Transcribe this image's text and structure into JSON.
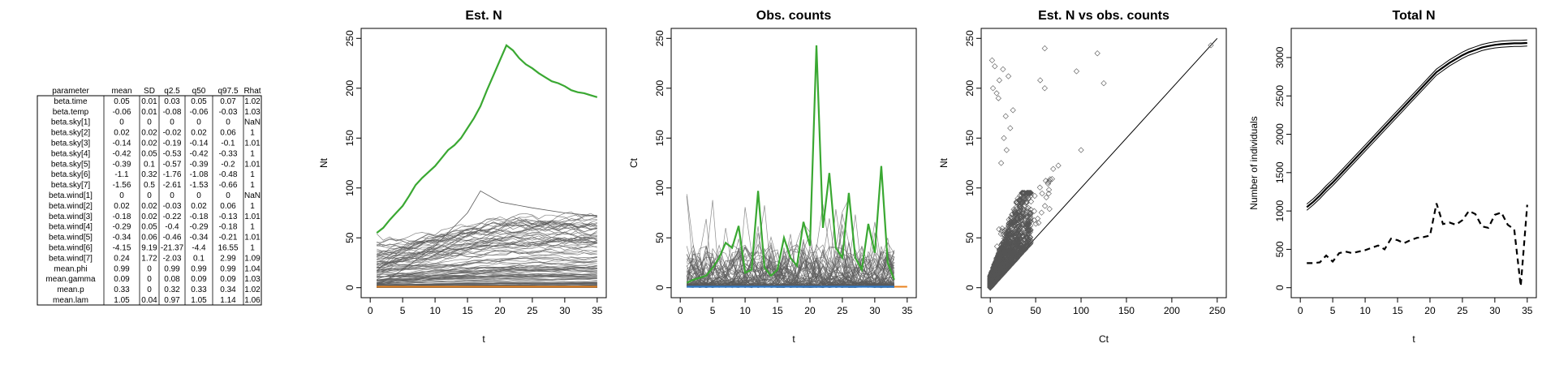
{
  "summary_table": {
    "columns": [
      "parameter",
      "mean",
      "SD",
      "q2.5",
      "q50",
      "q97.5",
      "Rhat"
    ],
    "rows": [
      [
        "beta.time",
        "0.05",
        "0.01",
        "0.03",
        "0.05",
        "0.07",
        "1.02"
      ],
      [
        "beta.temp",
        "-0.06",
        "0.01",
        "-0.08",
        "-0.06",
        "-0.03",
        "1.03"
      ],
      [
        "beta.sky[1]",
        "0",
        "0",
        "0",
        "0",
        "0",
        "NaN"
      ],
      [
        "beta.sky[2]",
        "0.02",
        "0.02",
        "-0.02",
        "0.02",
        "0.06",
        "1"
      ],
      [
        "beta.sky[3]",
        "-0.14",
        "0.02",
        "-0.19",
        "-0.14",
        "-0.1",
        "1.01"
      ],
      [
        "beta.sky[4]",
        "-0.42",
        "0.05",
        "-0.53",
        "-0.42",
        "-0.33",
        "1"
      ],
      [
        "beta.sky[5]",
        "-0.39",
        "0.1",
        "-0.57",
        "-0.39",
        "-0.2",
        "1.01"
      ],
      [
        "beta.sky[6]",
        "-1.1",
        "0.32",
        "-1.76",
        "-1.08",
        "-0.48",
        "1"
      ],
      [
        "beta.sky[7]",
        "-1.56",
        "0.5",
        "-2.61",
        "-1.53",
        "-0.66",
        "1"
      ],
      [
        "beta.wind[1]",
        "0",
        "0",
        "0",
        "0",
        "0",
        "NaN"
      ],
      [
        "beta.wind[2]",
        "0.02",
        "0.02",
        "-0.03",
        "0.02",
        "0.06",
        "1"
      ],
      [
        "beta.wind[3]",
        "-0.18",
        "0.02",
        "-0.22",
        "-0.18",
        "-0.13",
        "1.01"
      ],
      [
        "beta.wind[4]",
        "-0.29",
        "0.05",
        "-0.4",
        "-0.29",
        "-0.18",
        "1"
      ],
      [
        "beta.wind[5]",
        "-0.34",
        "0.06",
        "-0.46",
        "-0.34",
        "-0.21",
        "1.01"
      ],
      [
        "beta.wind[6]",
        "-4.15",
        "9.19",
        "-21.37",
        "-4.4",
        "16.55",
        "1"
      ],
      [
        "beta.wind[7]",
        "0.24",
        "1.72",
        "-2.03",
        "0.1",
        "2.99",
        "1.09"
      ],
      [
        "mean.phi",
        "0.99",
        "0",
        "0.99",
        "0.99",
        "0.99",
        "1.04"
      ],
      [
        "mean.gamma",
        "0.09",
        "0",
        "0.08",
        "0.09",
        "0.09",
        "1.03"
      ],
      [
        "mean.p",
        "0.33",
        "0",
        "0.32",
        "0.33",
        "0.34",
        "1.02"
      ],
      [
        "mean.lam",
        "1.05",
        "0.04",
        "0.97",
        "1.05",
        "1.14",
        "1.06"
      ]
    ]
  },
  "chart_data": [
    {
      "type": "line",
      "title": "Est. N",
      "xlabel": "t",
      "ylabel": "Nt",
      "xlim": [
        0,
        35
      ],
      "ylim": [
        0,
        250
      ],
      "xticks": [
        0,
        5,
        10,
        15,
        20,
        25,
        30,
        35
      ],
      "yticks": [
        0,
        50,
        100,
        150,
        200,
        250
      ],
      "colors": {
        "highlight": "#3aa832",
        "site_lines": "#5a5a5a",
        "low": "#e8821e"
      },
      "highlight_series": [
        [
          1,
          55
        ],
        [
          2,
          60
        ],
        [
          3,
          68
        ],
        [
          4,
          75
        ],
        [
          5,
          82
        ],
        [
          6,
          92
        ],
        [
          7,
          103
        ],
        [
          8,
          110
        ],
        [
          9,
          116
        ],
        [
          10,
          122
        ],
        [
          11,
          130
        ],
        [
          12,
          138
        ],
        [
          13,
          143
        ],
        [
          14,
          150
        ],
        [
          15,
          160
        ],
        [
          16,
          170
        ],
        [
          17,
          182
        ],
        [
          18,
          198
        ],
        [
          19,
          213
        ],
        [
          20,
          228
        ],
        [
          21,
          243
        ],
        [
          22,
          238
        ],
        [
          23,
          230
        ],
        [
          24,
          224
        ],
        [
          25,
          220
        ],
        [
          26,
          215
        ],
        [
          27,
          211
        ],
        [
          28,
          207
        ],
        [
          29,
          205
        ],
        [
          30,
          202
        ],
        [
          31,
          198
        ],
        [
          32,
          196
        ],
        [
          33,
          195
        ],
        [
          34,
          193
        ],
        [
          35,
          191
        ]
      ],
      "example_site_series": [
        [
          1,
          2
        ],
        [
          5,
          18
        ],
        [
          10,
          42
        ],
        [
          15,
          75
        ],
        [
          17,
          97
        ],
        [
          20,
          86
        ],
        [
          25,
          80
        ],
        [
          30,
          75
        ],
        [
          35,
          72
        ]
      ],
      "n_site_series": 120,
      "site_envelope_max": 97
    },
    {
      "type": "line",
      "title": "Obs. counts",
      "xlabel": "t",
      "ylabel": "Ct",
      "xlim": [
        0,
        35
      ],
      "ylim": [
        0,
        250
      ],
      "xticks": [
        0,
        5,
        10,
        15,
        20,
        25,
        30,
        35
      ],
      "yticks": [
        0,
        50,
        100,
        150,
        200,
        250
      ],
      "colors": {
        "highlight": "#3aa832",
        "site_lines": "#5a5a5a",
        "low": "#2e78c8",
        "low2": "#e8821e"
      },
      "highlight_series": [
        [
          1,
          5
        ],
        [
          2,
          8
        ],
        [
          3,
          10
        ],
        [
          4,
          12
        ],
        [
          5,
          20
        ],
        [
          6,
          30
        ],
        [
          7,
          45
        ],
        [
          8,
          40
        ],
        [
          9,
          62
        ],
        [
          10,
          15
        ],
        [
          11,
          18
        ],
        [
          12,
          97
        ],
        [
          13,
          20
        ],
        [
          14,
          12
        ],
        [
          15,
          18
        ],
        [
          16,
          50
        ],
        [
          17,
          30
        ],
        [
          18,
          22
        ],
        [
          19,
          66
        ],
        [
          20,
          42
        ],
        [
          21,
          243
        ],
        [
          22,
          60
        ],
        [
          23,
          115
        ],
        [
          24,
          40
        ],
        [
          25,
          30
        ],
        [
          26,
          95
        ],
        [
          27,
          30
        ],
        [
          28,
          18
        ],
        [
          29,
          64
        ],
        [
          30,
          35
        ],
        [
          31,
          122
        ],
        [
          32,
          25
        ],
        [
          33,
          8
        ]
      ],
      "n_site_series": 80,
      "site_envelope_max": 97
    },
    {
      "type": "scatter",
      "title": "Est. N vs obs. counts",
      "xlabel": "Ct",
      "ylabel": "Nt",
      "xlim": [
        0,
        250
      ],
      "ylim": [
        0,
        250
      ],
      "xticks": [
        0,
        50,
        100,
        150,
        200,
        250
      ],
      "yticks": [
        0,
        50,
        100,
        150,
        200,
        250
      ],
      "reference_line": "y = x",
      "marker": "open-diamond",
      "outliers": [
        [
          2,
          228
        ],
        [
          5,
          222
        ],
        [
          14,
          219
        ],
        [
          20,
          212
        ],
        [
          10,
          208
        ],
        [
          3,
          200
        ],
        [
          7,
          195
        ],
        [
          9,
          190
        ],
        [
          60,
          240
        ],
        [
          55,
          208
        ],
        [
          60,
          200
        ],
        [
          95,
          217
        ],
        [
          118,
          235
        ],
        [
          125,
          205
        ],
        [
          100,
          138
        ],
        [
          243,
          243
        ],
        [
          15,
          150
        ],
        [
          18,
          138
        ],
        [
          12,
          125
        ],
        [
          22,
          160
        ],
        [
          17,
          172
        ],
        [
          25,
          178
        ]
      ],
      "n_points": 2000
    },
    {
      "type": "line",
      "title": "Total N",
      "xlabel": "t",
      "ylabel": "Number of individuals",
      "xlim": [
        0,
        35
      ],
      "ylim": [
        0,
        3250
      ],
      "xticks": [
        0,
        5,
        10,
        15,
        20,
        25,
        30,
        35
      ],
      "yticks": [
        0,
        500,
        1000,
        1500,
        2000,
        2500,
        3000
      ],
      "series": [
        {
          "style": "solid-mean-with-bounds",
          "values": [
            [
              1,
              1050
            ],
            [
              2,
              1120
            ],
            [
              3,
              1200
            ],
            [
              4,
              1290
            ],
            [
              5,
              1370
            ],
            [
              6,
              1460
            ],
            [
              7,
              1550
            ],
            [
              8,
              1640
            ],
            [
              9,
              1730
            ],
            [
              10,
              1820
            ],
            [
              11,
              1910
            ],
            [
              12,
              2000
            ],
            [
              13,
              2090
            ],
            [
              14,
              2180
            ],
            [
              15,
              2270
            ],
            [
              16,
              2360
            ],
            [
              17,
              2450
            ],
            [
              18,
              2540
            ],
            [
              19,
              2630
            ],
            [
              20,
              2720
            ],
            [
              21,
              2810
            ],
            [
              22,
              2870
            ],
            [
              23,
              2930
            ],
            [
              24,
              2980
            ],
            [
              25,
              3030
            ],
            [
              26,
              3070
            ],
            [
              27,
              3100
            ],
            [
              28,
              3130
            ],
            [
              29,
              3150
            ],
            [
              30,
              3165
            ],
            [
              31,
              3175
            ],
            [
              32,
              3180
            ],
            [
              33,
              3185
            ],
            [
              34,
              3185
            ],
            [
              35,
              3190
            ]
          ],
          "band": 40
        },
        {
          "style": "dashed",
          "values": [
            [
              1,
              320
            ],
            [
              2,
              320
            ],
            [
              3,
              330
            ],
            [
              4,
              420
            ],
            [
              5,
              340
            ],
            [
              6,
              450
            ],
            [
              7,
              470
            ],
            [
              8,
              450
            ],
            [
              9,
              470
            ],
            [
              10,
              490
            ],
            [
              11,
              520
            ],
            [
              12,
              550
            ],
            [
              13,
              500
            ],
            [
              14,
              640
            ],
            [
              15,
              620
            ],
            [
              16,
              580
            ],
            [
              17,
              620
            ],
            [
              18,
              650
            ],
            [
              19,
              660
            ],
            [
              20,
              680
            ],
            [
              21,
              1100
            ],
            [
              22,
              830
            ],
            [
              23,
              850
            ],
            [
              24,
              820
            ],
            [
              25,
              880
            ],
            [
              26,
              1000
            ],
            [
              27,
              960
            ],
            [
              28,
              800
            ],
            [
              29,
              780
            ],
            [
              30,
              950
            ],
            [
              31,
              980
            ],
            [
              32,
              820
            ],
            [
              33,
              760
            ],
            [
              34,
              20
            ],
            [
              35,
              1080
            ]
          ]
        }
      ]
    }
  ]
}
